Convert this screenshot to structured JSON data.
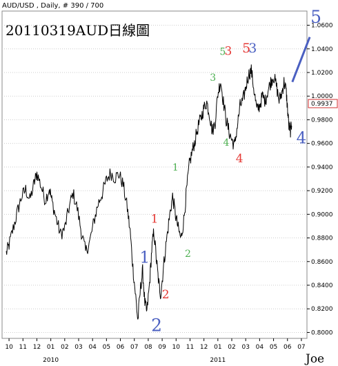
{
  "chart_data": {
    "type": "line",
    "header": "AUD/USD , Daily, # 390 / 700",
    "title": "20110319AUD日線圖",
    "last_price": "0.9937",
    "signature": "Joe",
    "ylim": [
      0.795,
      1.072
    ],
    "y_ticks": [
      "0.8000",
      "0.8200",
      "0.8400",
      "0.8600",
      "0.8800",
      "0.9000",
      "0.9200",
      "0.9400",
      "0.9600",
      "0.9800",
      "1.0000",
      "1.0200",
      "1.0400",
      "1.0600"
    ],
    "x_months": [
      "10",
      "11",
      "12",
      "01",
      "02",
      "03",
      "04",
      "05",
      "06",
      "07",
      "08",
      "09",
      "10",
      "11",
      "12",
      "01",
      "02",
      "03",
      "04",
      "05",
      "06",
      "07"
    ],
    "x_years": [
      {
        "label": "2010",
        "month_index": 3
      },
      {
        "label": "2011",
        "month_index": 15
      }
    ],
    "x_range": [
      -0.5,
      21.4
    ],
    "series": [
      {
        "values": [
          [
            -0.2,
            0.867
          ],
          [
            0.0,
            0.874
          ],
          [
            0.3,
            0.888
          ],
          [
            0.6,
            0.902
          ],
          [
            0.9,
            0.915
          ],
          [
            1.2,
            0.921
          ],
          [
            1.5,
            0.912
          ],
          [
            1.8,
            0.926
          ],
          [
            2.0,
            0.935
          ],
          [
            2.3,
            0.924
          ],
          [
            2.6,
            0.912
          ],
          [
            2.9,
            0.922
          ],
          [
            3.1,
            0.91
          ],
          [
            3.4,
            0.896
          ],
          [
            3.7,
            0.883
          ],
          [
            4.0,
            0.888
          ],
          [
            4.3,
            0.905
          ],
          [
            4.6,
            0.918
          ],
          [
            4.9,
            0.905
          ],
          [
            5.2,
            0.885
          ],
          [
            5.5,
            0.868
          ],
          [
            5.8,
            0.877
          ],
          [
            6.1,
            0.894
          ],
          [
            6.4,
            0.909
          ],
          [
            6.7,
            0.918
          ],
          [
            7.0,
            0.929
          ],
          [
            7.3,
            0.935
          ],
          [
            7.6,
            0.931
          ],
          [
            7.9,
            0.934
          ],
          [
            8.2,
            0.925
          ],
          [
            8.5,
            0.905
          ],
          [
            8.7,
            0.885
          ],
          [
            8.9,
            0.855
          ],
          [
            9.1,
            0.83
          ],
          [
            9.25,
            0.81
          ],
          [
            9.45,
            0.838
          ],
          [
            9.6,
            0.852
          ],
          [
            9.75,
            0.825
          ],
          [
            9.9,
            0.817
          ],
          [
            10.1,
            0.842
          ],
          [
            10.25,
            0.87
          ],
          [
            10.4,
            0.886
          ],
          [
            10.6,
            0.86
          ],
          [
            10.75,
            0.842
          ],
          [
            10.9,
            0.832
          ],
          [
            11.1,
            0.856
          ],
          [
            11.3,
            0.877
          ],
          [
            11.55,
            0.9
          ],
          [
            11.75,
            0.915
          ],
          [
            11.95,
            0.9
          ],
          [
            12.15,
            0.888
          ],
          [
            12.35,
            0.879
          ],
          [
            12.55,
            0.895
          ],
          [
            12.75,
            0.92
          ],
          [
            12.95,
            0.942
          ],
          [
            13.15,
            0.953
          ],
          [
            13.35,
            0.962
          ],
          [
            13.6,
            0.975
          ],
          [
            13.8,
            0.982
          ],
          [
            14.0,
            0.99
          ],
          [
            14.2,
            0.995
          ],
          [
            14.4,
            0.985
          ],
          [
            14.6,
            0.97
          ],
          [
            14.8,
            0.978
          ],
          [
            15.0,
            1.002
          ],
          [
            15.2,
            1.013
          ],
          [
            15.4,
            0.995
          ],
          [
            15.6,
            0.98
          ],
          [
            15.8,
            0.97
          ],
          [
            16.0,
            0.963
          ],
          [
            16.2,
            0.958
          ],
          [
            16.4,
            0.975
          ],
          [
            16.6,
            0.992
          ],
          [
            16.8,
            0.996
          ],
          [
            17.0,
            1.007
          ],
          [
            17.2,
            1.018
          ],
          [
            17.4,
            1.022
          ],
          [
            17.6,
            1.005
          ],
          [
            17.8,
            0.988
          ],
          [
            18.0,
            0.992
          ],
          [
            18.2,
            1.0
          ],
          [
            18.4,
            0.996
          ],
          [
            18.6,
            1.005
          ],
          [
            18.8,
            1.012
          ],
          [
            19.0,
            1.017
          ],
          [
            19.2,
            1.009
          ],
          [
            19.4,
            0.996
          ],
          [
            19.6,
            1.003
          ],
          [
            19.75,
            1.012
          ],
          [
            19.9,
            1.005
          ],
          [
            20.0,
            0.99
          ],
          [
            20.1,
            0.975
          ],
          [
            20.2,
            0.97
          ],
          [
            20.3,
            0.975
          ]
        ]
      }
    ],
    "wave_labels": [
      {
        "text": "5",
        "x": 15.35,
        "y": 1.035,
        "color": "#4caf50",
        "size": 14
      },
      {
        "text": "3",
        "x": 15.75,
        "y": 1.035,
        "color": "#e53935",
        "size": 17
      },
      {
        "text": "5",
        "x": 17.05,
        "y": 1.037,
        "color": "#e53935",
        "size": 19
      },
      {
        "text": "3",
        "x": 17.5,
        "y": 1.037,
        "color": "#4a5fc1",
        "size": 19
      },
      {
        "text": "5",
        "x": 22.05,
        "y": 1.062,
        "color": "#4a5fc1",
        "size": 25
      },
      {
        "text": "3",
        "x": 14.65,
        "y": 1.013,
        "color": "#4caf50",
        "size": 14
      },
      {
        "text": "4",
        "x": 15.6,
        "y": 0.958,
        "color": "#4caf50",
        "size": 14
      },
      {
        "text": "4",
        "x": 16.55,
        "y": 0.944,
        "color": "#e53935",
        "size": 17
      },
      {
        "text": "4",
        "x": 21.0,
        "y": 0.96,
        "color": "#4a5fc1",
        "size": 23
      },
      {
        "text": "1",
        "x": 11.95,
        "y": 0.937,
        "color": "#4caf50",
        "size": 14
      },
      {
        "text": "1",
        "x": 10.45,
        "y": 0.893,
        "color": "#e53935",
        "size": 17
      },
      {
        "text": "2",
        "x": 12.85,
        "y": 0.864,
        "color": "#4caf50",
        "size": 14
      },
      {
        "text": "1",
        "x": 9.75,
        "y": 0.859,
        "color": "#4a5fc1",
        "size": 23
      },
      {
        "text": "2",
        "x": 11.25,
        "y": 0.829,
        "color": "#e53935",
        "size": 17
      },
      {
        "text": "2",
        "x": 10.6,
        "y": 0.801,
        "color": "#4a5fc1",
        "size": 25
      }
    ],
    "projection": {
      "from": [
        20.35,
        1.012
      ],
      "to": [
        21.6,
        1.05
      ],
      "color": "#4a5fc1"
    }
  }
}
